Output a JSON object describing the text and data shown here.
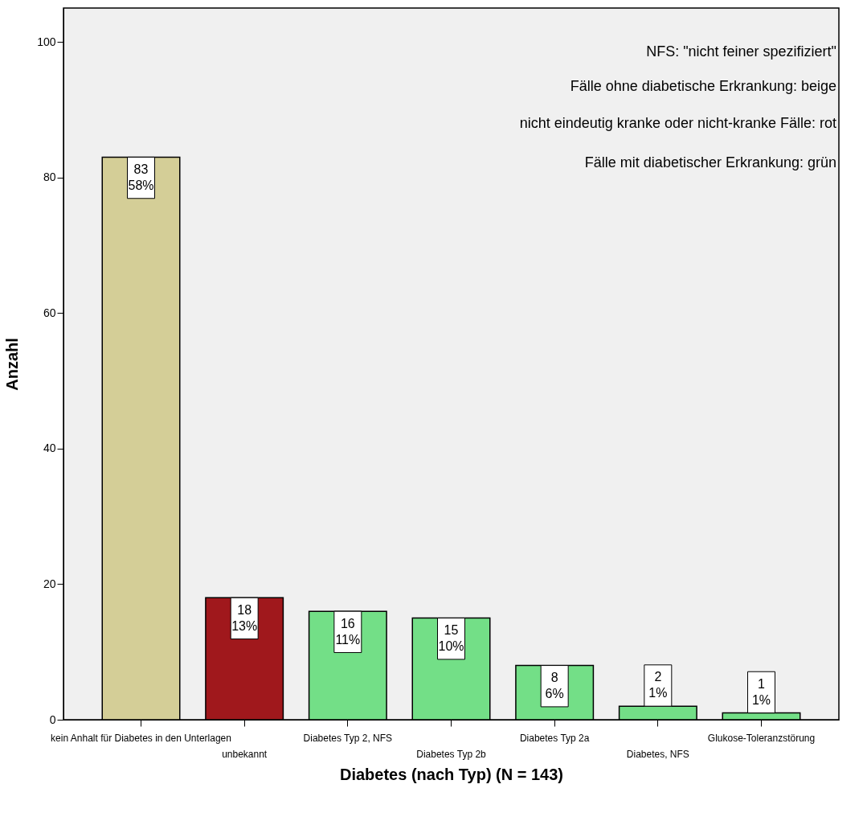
{
  "chart_data": {
    "type": "bar",
    "xlabel": "Diabetes (nach Typ) (N = 143)",
    "ylabel": "Anzahl",
    "categories": [
      "kein Anhalt für Diabetes in den Unterlagen",
      "unbekannt",
      "Diabetes Typ 2, NFS",
      "Diabetes Typ 2b",
      "Diabetes Typ 2a",
      "Diabetes, NFS",
      "Glukose-Toleranzstörung"
    ],
    "values": [
      83,
      18,
      16,
      15,
      8,
      2,
      1
    ],
    "colors": [
      "#d4ce97",
      "#a0181c",
      "#73df87",
      "#73df87",
      "#73df87",
      "#73df87",
      "#73df87"
    ],
    "value_labels": [
      "83\n58%",
      "18\n13%",
      "16\n11%",
      "15\n10%",
      "8\n6%",
      "2\n1%",
      "1\n1%"
    ],
    "ylim": [
      0,
      105
    ],
    "yticks": [
      0,
      20,
      40,
      60,
      80,
      100
    ],
    "grid": false,
    "annotations": [
      "NFS: \"nicht feiner spezifiziert\"",
      "Fälle ohne diabetische Erkrankung: beige",
      "nicht eindeutig kranke oder nicht-kranke Fälle: rot",
      "Fälle mit diabetischer Erkrankung: grün"
    ]
  }
}
